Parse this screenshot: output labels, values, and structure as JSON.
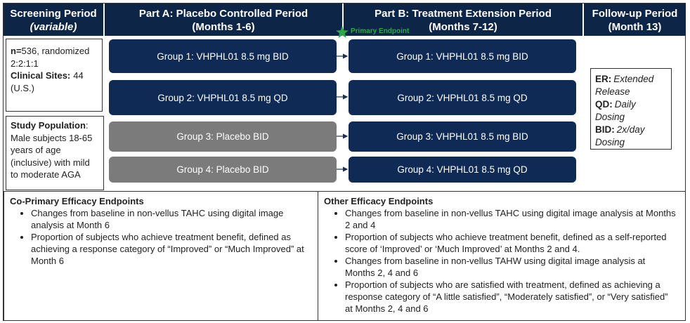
{
  "header": {
    "columns": [
      {
        "title": "Screening Period",
        "subtitle": "(variable)"
      },
      {
        "title": "Part A: Placebo Controlled Period",
        "subtitle": "(Months 1-6)"
      },
      {
        "title": "Part B: Treatment Extension Period",
        "subtitle": "(Months 7-12)"
      },
      {
        "title": "Follow-up Period",
        "subtitle": "(Month 13)"
      }
    ]
  },
  "primary_endpoint": "Primary Endpoint",
  "enrollment": {
    "n_label": "n=",
    "n_text": "536, randomized 2:2:1:1",
    "sites_label": "Clinical Sites:",
    "sites_text": "44 (U.S.)"
  },
  "population": {
    "label": "Study Population",
    "text": ": Male subjects 18-65 years of age (inclusive) with mild to moderate AGA"
  },
  "part_a": {
    "groups": [
      "Group 1: VHPHL01 8.5 mg BID",
      "Group 2: VHPHL01 8.5 mg QD",
      "Group 3: Placebo BID",
      "Group 4: Placebo BID"
    ]
  },
  "part_b": {
    "groups": [
      "Group 1: VHPHL01 8.5 mg BID",
      "Group 2: VHPHL01 8.5 mg QD",
      "Group 3: VHPHL01 8.5 mg BID",
      "Group 4: VHPHL01 8.5 mg QD"
    ]
  },
  "legend": [
    {
      "abbr": "ER:",
      "meaning": "Extended Release"
    },
    {
      "abbr": "QD:",
      "meaning": "Daily Dosing"
    },
    {
      "abbr": "BID:",
      "meaning": "2x/day Dosing"
    }
  ],
  "co_primary": {
    "title": "Co-Primary Efficacy Endpoints",
    "items": [
      "Changes from baseline in non-vellus TAHC using digital image analysis at Month 6",
      "Proportion of subjects who achieve treatment benefit, defined as achieving a response category of “Improved” or “Much Improved” at Month 6"
    ]
  },
  "other": {
    "title": "Other Efficacy Endpoints",
    "items": [
      "Changes from baseline in non-vellus TAHC using digital image analysis at Months 2 and 4",
      "Proportion of subjects who achieve treatment benefit, defined as a self-reported score of ‘Improved’ or ‘Much Improved’ at Months 2 and 4.",
      "Changes from baseline in non-vellus TAHW using digital image analysis at Months 2, 4 and 6",
      "Proportion of subjects who are satisfied with treatment, defined as achieving a response category of “A little satisfied”, “Moderately satisfied”, or “Very satisfied” at Months 2, 4 and 6"
    ]
  }
}
